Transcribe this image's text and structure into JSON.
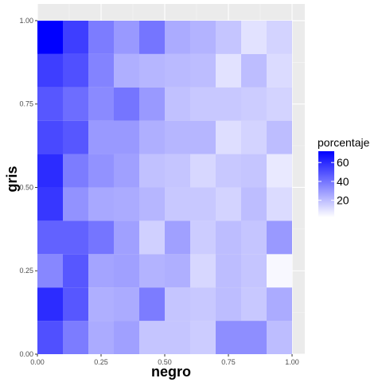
{
  "chart_data": {
    "type": "heatmap",
    "xlabel": "negro",
    "ylabel": "gris",
    "xlim": [
      0,
      1.05
    ],
    "ylim": [
      0,
      1.05
    ],
    "x_ticks": [
      "0.00",
      "0.25",
      "0.50",
      "0.75",
      "1.00"
    ],
    "y_ticks": [
      "0.00",
      "0.25",
      "0.50",
      "0.75",
      "1.00"
    ],
    "x_centers": [
      0.05,
      0.15,
      0.25,
      0.35,
      0.45,
      0.55,
      0.65,
      0.75,
      0.85,
      0.95
    ],
    "y_centers": [
      0.05,
      0.15,
      0.25,
      0.35,
      0.45,
      0.55,
      0.65,
      0.75,
      0.85,
      0.95
    ],
    "cell_size": 0.1,
    "values": [
      [
        50,
        38,
        25,
        28,
        18,
        18,
        16,
        33,
        33,
        20
      ],
      [
        60,
        48,
        24,
        25,
        38,
        18,
        17,
        20,
        17,
        25
      ],
      [
        35,
        48,
        27,
        28,
        23,
        24,
        13,
        20,
        18,
        4
      ],
      [
        45,
        45,
        40,
        28,
        15,
        28,
        16,
        20,
        18,
        30
      ],
      [
        57,
        32,
        26,
        25,
        22,
        17,
        17,
        14,
        20,
        12
      ],
      [
        60,
        38,
        32,
        28,
        19,
        18,
        13,
        17,
        18,
        8
      ],
      [
        52,
        48,
        30,
        30,
        24,
        22,
        22,
        11,
        14,
        20
      ],
      [
        48,
        42,
        34,
        40,
        30,
        19,
        17,
        17,
        16,
        14
      ],
      [
        55,
        50,
        36,
        24,
        22,
        21,
        20,
        10,
        20,
        12
      ],
      [
        72,
        55,
        38,
        30,
        40,
        25,
        23,
        18,
        10,
        14
      ]
    ],
    "legend": {
      "title": "porcentaje",
      "labels": [
        "20",
        "40",
        "60"
      ],
      "values": [
        20,
        40,
        60
      ],
      "range": [
        2,
        72
      ],
      "low_color": "#ffffff",
      "high_color": "#0000ff",
      "placement": "right"
    },
    "panel_background": "#ebebeb",
    "grid": true
  }
}
